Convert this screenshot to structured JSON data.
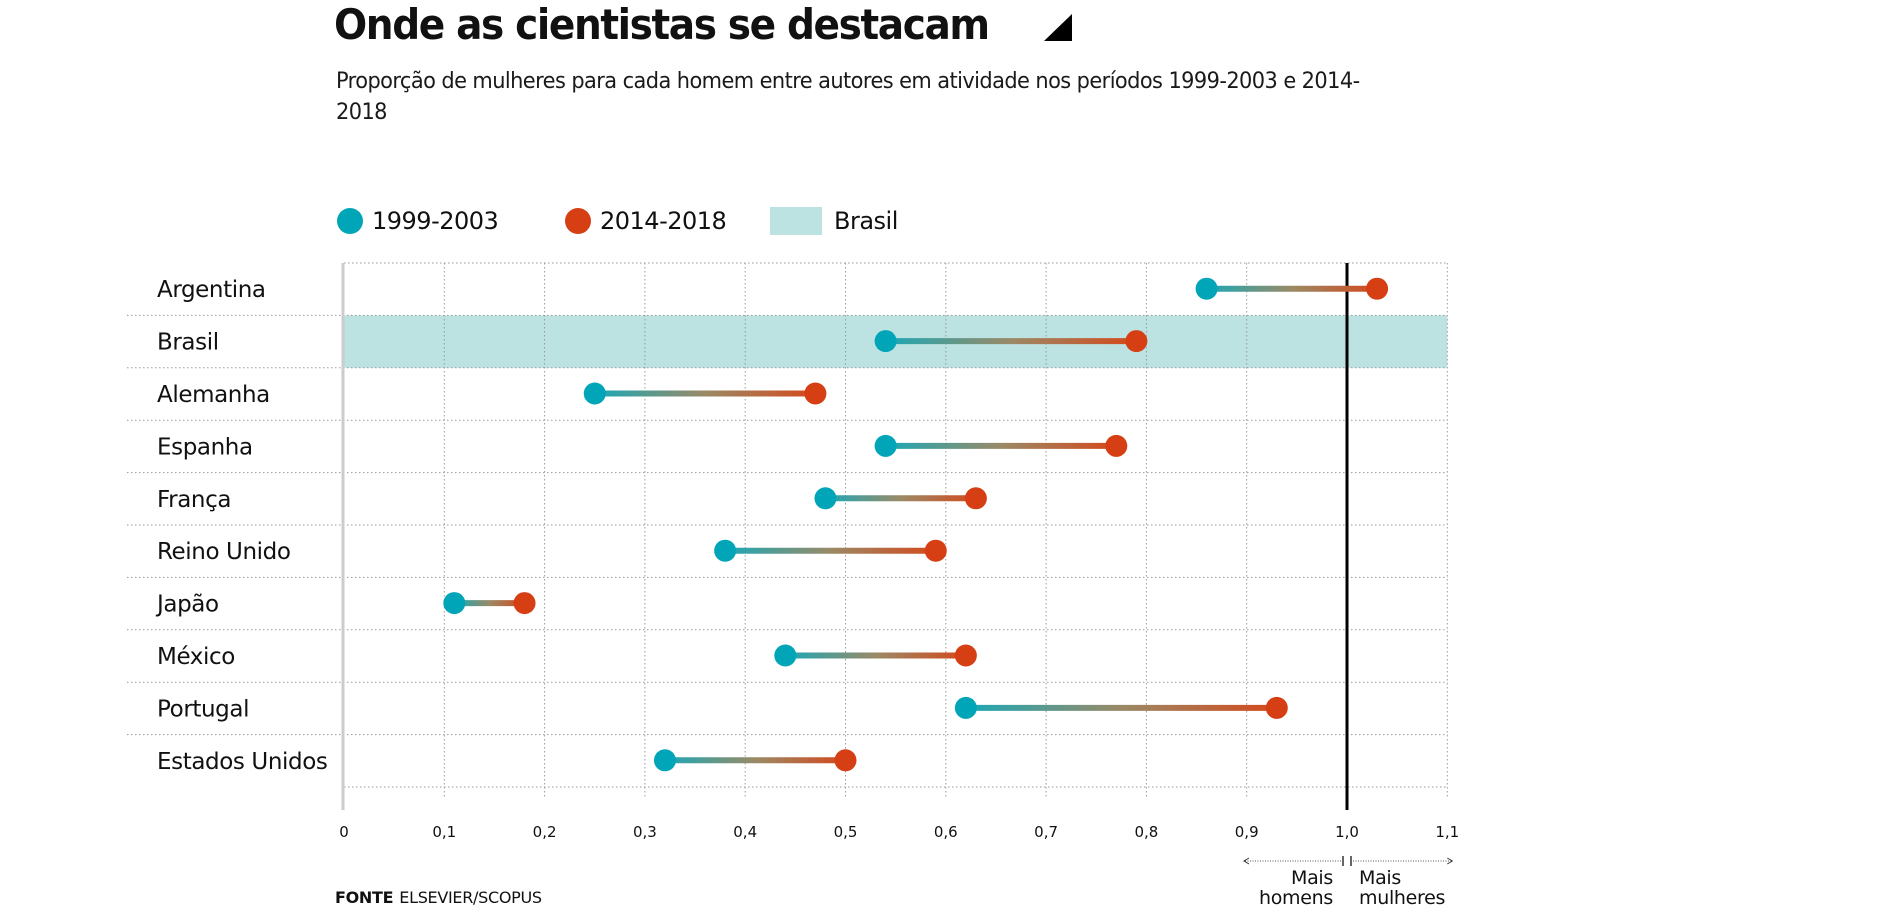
{
  "header": {
    "title": "Onde as cientistas se destacam",
    "title_icon": "triangle-corner-icon",
    "subtitle": "Proporção de mulheres para cada homem entre autores em atividade nos períodos 1999-2003 e 2014-2018"
  },
  "legend": [
    {
      "label": "1999-2003",
      "kind": "dot",
      "color": "#00a6b8"
    },
    {
      "label": "2014-2018",
      "kind": "dot",
      "color": "#d63e14"
    },
    {
      "label": "Brasil",
      "kind": "swatch",
      "color": "#bde2e2"
    }
  ],
  "colors": {
    "period1": "#00a6b8",
    "period2": "#d63e14",
    "highlight_band": "#bde2e2",
    "gridline": "#9a9a9a",
    "parity_line": "#000000",
    "axis_line": "#cccccc"
  },
  "chart_data": {
    "type": "dumbbell",
    "title": "Onde as cientistas se destacam",
    "subtitle": "Proporção de mulheres para cada homem entre autores em atividade nos períodos 1999-2003 e 2014-2018",
    "xlabel": "",
    "ylabel": "",
    "xlim": [
      0,
      1.1
    ],
    "x_ticks": [
      0,
      0.1,
      0.2,
      0.3,
      0.4,
      0.5,
      0.6,
      0.7,
      0.8,
      0.9,
      1.0,
      1.1
    ],
    "x_tick_labels": [
      "0",
      "0,1",
      "0,2",
      "0,3",
      "0,4",
      "0,5",
      "0,6",
      "0,7",
      "0,8",
      "0,9",
      "1,0",
      "1,1"
    ],
    "grid": true,
    "legend_position": "top-left",
    "reference_line": {
      "x": 1.0,
      "label_left": "Mais homens",
      "label_right": "Mais mulheres"
    },
    "highlight_category": "Brasil",
    "categories": [
      "Argentina",
      "Brasil",
      "Alemanha",
      "Espanha",
      "França",
      "Reino Unido",
      "Japão",
      "México",
      "Portugal",
      "Estados Unidos"
    ],
    "series": [
      {
        "name": "1999-2003",
        "values": [
          0.86,
          0.54,
          0.25,
          0.54,
          0.48,
          0.38,
          0.11,
          0.44,
          0.62,
          0.32
        ]
      },
      {
        "name": "2014-2018",
        "values": [
          1.03,
          0.79,
          0.47,
          0.77,
          0.63,
          0.59,
          0.18,
          0.62,
          0.93,
          0.5
        ]
      }
    ]
  },
  "annotations": {
    "more_men_line1": "Mais",
    "more_men_line2": "homens",
    "more_women_line1": "Mais",
    "more_women_line2": "mulheres"
  },
  "source": {
    "label": "FONTE",
    "text": "ELSEVIER/SCOPUS"
  }
}
